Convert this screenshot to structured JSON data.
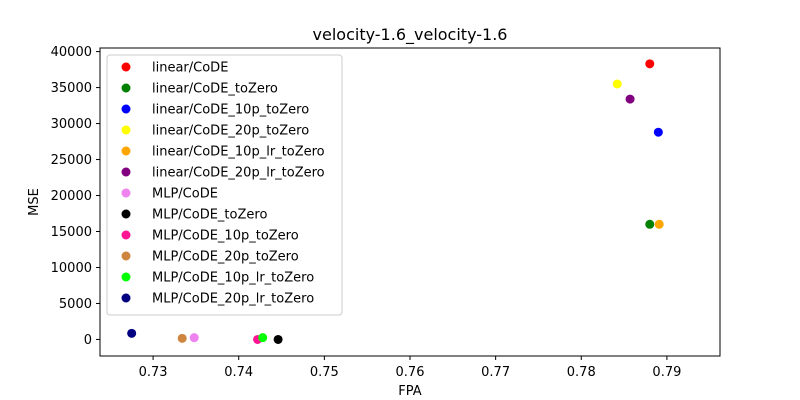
{
  "chart_data": {
    "type": "scatter",
    "title": "velocity-1.6_velocity-1.6",
    "xlabel": "FPA",
    "ylabel": "MSE",
    "xlim": [
      0.7238,
      0.7962
    ],
    "ylim": [
      -2300,
      40500
    ],
    "xticks": [
      0.73,
      0.74,
      0.75,
      0.76,
      0.77,
      0.78,
      0.79
    ],
    "xtick_labels": [
      "0.73",
      "0.74",
      "0.75",
      "0.76",
      "0.77",
      "0.78",
      "0.79"
    ],
    "yticks": [
      0,
      5000,
      10000,
      15000,
      20000,
      25000,
      30000,
      35000,
      40000
    ],
    "ytick_labels": [
      "0",
      "5000",
      "10000",
      "15000",
      "20000",
      "25000",
      "30000",
      "35000",
      "40000"
    ],
    "grid": false,
    "legend_position": "upper-left",
    "series": [
      {
        "name": "linear/CoDE",
        "color": "#ff0000",
        "points": [
          [
            0.788,
            38300
          ]
        ]
      },
      {
        "name": "linear/CoDE_toZero",
        "color": "#008000",
        "points": [
          [
            0.788,
            16000
          ]
        ]
      },
      {
        "name": "linear/CoDE_10p_toZero",
        "color": "#0000ff",
        "points": [
          [
            0.789,
            28800
          ]
        ]
      },
      {
        "name": "linear/CoDE_20p_toZero",
        "color": "#ffff00",
        "points": [
          [
            0.7842,
            35500
          ]
        ]
      },
      {
        "name": "linear/CoDE_10p_lr_toZero",
        "color": "#ffa500",
        "points": [
          [
            0.7891,
            16000
          ]
        ]
      },
      {
        "name": "linear/CoDE_20p_lr_toZero",
        "color": "#800080",
        "points": [
          [
            0.7857,
            33400
          ]
        ]
      },
      {
        "name": "MLP/CoDE",
        "color": "#ee82ee",
        "points": [
          [
            0.7348,
            250
          ]
        ]
      },
      {
        "name": "MLP/CoDE_toZero",
        "color": "#000000",
        "points": [
          [
            0.7446,
            0
          ]
        ]
      },
      {
        "name": "MLP/CoDE_10p_toZero",
        "color": "#ff1493",
        "points": [
          [
            0.7422,
            0
          ]
        ]
      },
      {
        "name": "MLP/CoDE_20p_toZero",
        "color": "#cd853f",
        "points": [
          [
            0.7334,
            150
          ]
        ]
      },
      {
        "name": "MLP/CoDE_10p_lr_toZero",
        "color": "#00ff00",
        "points": [
          [
            0.7428,
            250
          ]
        ]
      },
      {
        "name": "MLP/CoDE_20p_lr_toZero",
        "color": "#000080",
        "points": [
          [
            0.7275,
            850
          ]
        ]
      }
    ]
  }
}
